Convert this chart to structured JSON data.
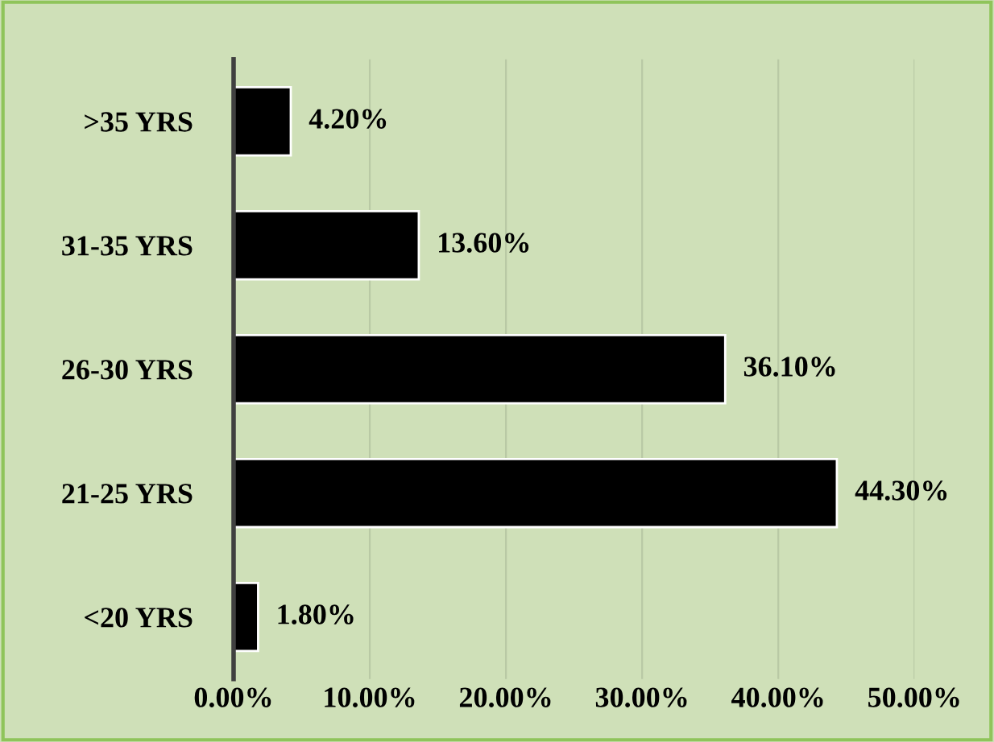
{
  "chart_data": {
    "type": "bar",
    "orientation": "horizontal",
    "categories": [
      ">35 YRS",
      "31-35 YRS",
      "26-30 YRS",
      "21-25 YRS",
      "<20 YRS"
    ],
    "values": [
      4.2,
      13.6,
      36.1,
      44.3,
      1.8
    ],
    "value_labels": [
      "4.20%",
      "13.60%",
      "36.10%",
      "44.30%",
      "1.80%"
    ],
    "color": "#000000",
    "xlim": [
      0,
      50
    ],
    "xticks": [
      {
        "value": 0,
        "label": "0.00%"
      },
      {
        "value": 10,
        "label": "10.00%"
      },
      {
        "value": 20,
        "label": "20.00%"
      },
      {
        "value": 30,
        "label": "30.00%"
      },
      {
        "value": 40,
        "label": "40.00%"
      },
      {
        "value": 50,
        "label": "50.00%"
      }
    ],
    "grid": "x"
  }
}
